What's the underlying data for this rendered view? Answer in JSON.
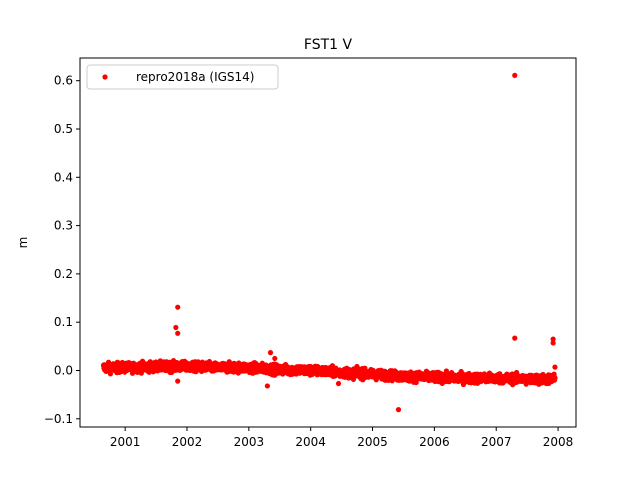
{
  "chart_data": {
    "type": "scatter",
    "title": "FST1 V",
    "xlabel": "",
    "ylabel": "m",
    "xlim": [
      2000.27,
      2008.29
    ],
    "ylim": [
      -0.117,
      0.647
    ],
    "x_ticks": [
      2001,
      2002,
      2003,
      2004,
      2005,
      2006,
      2007,
      2008
    ],
    "x_tick_labels": [
      "2001",
      "2002",
      "2003",
      "2004",
      "2005",
      "2006",
      "2007",
      "2008"
    ],
    "y_ticks": [
      -0.1,
      0.0,
      0.1,
      0.2,
      0.3,
      0.4,
      0.5,
      0.6
    ],
    "y_tick_labels": [
      "−0.1",
      "0.0",
      "0.1",
      "0.2",
      "0.3",
      "0.4",
      "0.5",
      "0.6"
    ],
    "grid": false,
    "legend_position": "top-left",
    "series": [
      {
        "name": "repro2018a (IGS14)",
        "color": "#ff0000",
        "marker": "circle",
        "trend": [
          [
            2000.65,
            0.006
          ],
          [
            2001.0,
            0.006
          ],
          [
            2001.5,
            0.008
          ],
          [
            2002.0,
            0.008
          ],
          [
            2002.5,
            0.006
          ],
          [
            2003.0,
            0.006
          ],
          [
            2003.5,
            0.002
          ],
          [
            2004.0,
            0.0
          ],
          [
            2004.5,
            -0.004
          ],
          [
            2005.0,
            -0.008
          ],
          [
            2005.5,
            -0.012
          ],
          [
            2006.0,
            -0.014
          ],
          [
            2006.5,
            -0.016
          ],
          [
            2007.0,
            -0.016
          ],
          [
            2007.5,
            -0.018
          ],
          [
            2007.95,
            -0.018
          ]
        ],
        "trend_spread": 0.007,
        "outliers": [
          {
            "x": 2001.85,
            "y": 0.131
          },
          {
            "x": 2001.82,
            "y": 0.089
          },
          {
            "x": 2001.85,
            "y": 0.077
          },
          {
            "x": 2001.85,
            "y": -0.022
          },
          {
            "x": 2003.3,
            "y": -0.032
          },
          {
            "x": 2003.35,
            "y": 0.037
          },
          {
            "x": 2003.42,
            "y": 0.025
          },
          {
            "x": 2004.45,
            "y": -0.027
          },
          {
            "x": 2005.42,
            "y": -0.081
          },
          {
            "x": 2007.3,
            "y": 0.611
          },
          {
            "x": 2007.3,
            "y": 0.067
          },
          {
            "x": 2007.92,
            "y": 0.065
          },
          {
            "x": 2007.92,
            "y": 0.057
          },
          {
            "x": 2007.95,
            "y": 0.007
          }
        ]
      }
    ]
  }
}
